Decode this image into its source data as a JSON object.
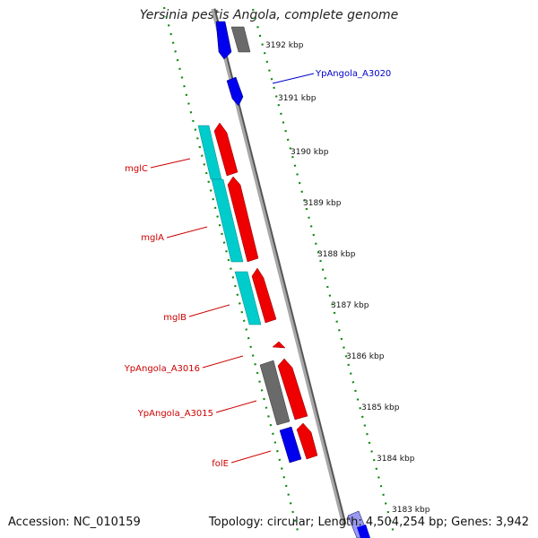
{
  "title": "Yersinia pestis Angola, complete genome",
  "footer": {
    "accession": "Accession: NC_010159",
    "summary": "Topology: circular; Length: 4,504,254 bp; Genes: 3,942"
  },
  "colors": {
    "forward_cds": "#ee0000",
    "reverse_cds": "#00c8c8",
    "blue_gene": "#0000ee",
    "gray_gene": "#666666",
    "tick": "#118811",
    "backbone": "#8a8a8a",
    "label_red": "#cc0000",
    "label_blue": "#0000cc"
  },
  "kbp_labels": [
    "3192 kbp",
    "3191 kbp",
    "3190 kbp",
    "3189 kbp",
    "3188 kbp",
    "3187 kbp",
    "3186 kbp",
    "3185 kbp",
    "3184 kbp",
    "3183 kbp"
  ],
  "gene_labels": [
    {
      "name": "YpAngola_A3020",
      "color": "blue"
    },
    {
      "name": "mglC",
      "color": "red"
    },
    {
      "name": "mglA",
      "color": "red"
    },
    {
      "name": "mglB",
      "color": "red"
    },
    {
      "name": "YpAngola_A3016",
      "color": "red"
    },
    {
      "name": "YpAngola_A3015",
      "color": "red"
    },
    {
      "name": "folE",
      "color": "red"
    }
  ]
}
